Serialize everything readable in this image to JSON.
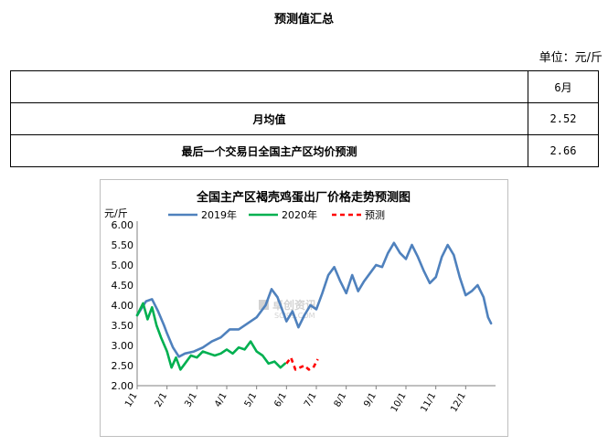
{
  "page_title": "预测值汇总",
  "unit_note": "单位：元/斤",
  "table": {
    "header": [
      "",
      "6月"
    ],
    "rows": [
      {
        "label": "月均值",
        "value": "2.52"
      },
      {
        "label": "最后一个交易日全国主产区均价预测",
        "value": "2.66"
      }
    ]
  },
  "watermark": {
    "name": "卓创资讯",
    "url": "SCI99.COM"
  },
  "chart_data": {
    "type": "line",
    "title": "全国主产区褐壳鸡蛋出厂价格走势预测图",
    "ylabel": "元/斤",
    "xlabel": "",
    "ylim": [
      2.0,
      6.0
    ],
    "yticks": [
      "2.00",
      "2.50",
      "3.00",
      "3.50",
      "4.00",
      "4.50",
      "5.00",
      "5.50",
      "6.00"
    ],
    "x_tick_labels": [
      "1/1",
      "2/1",
      "3/1",
      "4/1",
      "5/1",
      "6/1",
      "7/1",
      "8/1",
      "9/1",
      "10/1",
      "11/1",
      "12/1"
    ],
    "legend_position": "top",
    "series": [
      {
        "name": "2019年",
        "color": "#4f81bd",
        "dash": "solid",
        "x": [
          0,
          0.3,
          0.5,
          0.7,
          0.9,
          1.0,
          1.2,
          1.4,
          1.6,
          1.9,
          2.2,
          2.5,
          2.8,
          3.1,
          3.4,
          3.7,
          4.0,
          4.3,
          4.5,
          4.7,
          4.9,
          5.0,
          5.2,
          5.4,
          5.6,
          5.8,
          6.0,
          6.2,
          6.4,
          6.6,
          6.8,
          7.0,
          7.2,
          7.4,
          7.6,
          7.8,
          8.0,
          8.2,
          8.4,
          8.6,
          8.8,
          9.0,
          9.2,
          9.4,
          9.6,
          9.8,
          10.0,
          10.2,
          10.4,
          10.6,
          10.8,
          11.0,
          11.2,
          11.4,
          11.6,
          11.75,
          11.85
        ],
        "values": [
          3.75,
          4.1,
          4.15,
          3.85,
          3.5,
          3.3,
          2.95,
          2.72,
          2.8,
          2.85,
          2.95,
          3.1,
          3.2,
          3.4,
          3.4,
          3.55,
          3.7,
          4.0,
          4.4,
          4.2,
          3.8,
          3.6,
          3.85,
          3.45,
          3.75,
          4.0,
          3.9,
          4.3,
          4.75,
          4.95,
          4.6,
          4.3,
          4.75,
          4.35,
          4.6,
          4.8,
          5.0,
          4.95,
          5.3,
          5.55,
          5.3,
          5.15,
          5.5,
          5.2,
          4.85,
          4.55,
          4.7,
          5.2,
          5.5,
          5.25,
          4.7,
          4.25,
          4.35,
          4.5,
          4.2,
          3.7,
          3.55
        ]
      },
      {
        "name": "2020年",
        "color": "#00b050",
        "dash": "solid",
        "x": [
          0,
          0.2,
          0.35,
          0.5,
          0.65,
          0.8,
          1.0,
          1.15,
          1.3,
          1.45,
          1.6,
          1.8,
          2.0,
          2.2,
          2.4,
          2.6,
          2.8,
          3.0,
          3.2,
          3.4,
          3.6,
          3.8,
          4.0,
          4.2,
          4.4,
          4.6,
          4.8,
          4.95
        ],
        "values": [
          3.75,
          4.05,
          3.65,
          3.95,
          3.5,
          3.2,
          2.85,
          2.45,
          2.7,
          2.4,
          2.55,
          2.75,
          2.7,
          2.85,
          2.8,
          2.75,
          2.8,
          2.9,
          2.8,
          2.95,
          2.9,
          3.1,
          2.85,
          2.75,
          2.55,
          2.6,
          2.45,
          2.55
        ]
      },
      {
        "name": "预测",
        "color": "#ff0000",
        "dash": "dashed",
        "x": [
          5.0,
          5.15,
          5.3,
          5.45,
          5.6,
          5.75,
          5.9,
          6.05
        ],
        "values": [
          2.55,
          2.7,
          2.4,
          2.45,
          2.5,
          2.4,
          2.45,
          2.66
        ]
      }
    ]
  }
}
